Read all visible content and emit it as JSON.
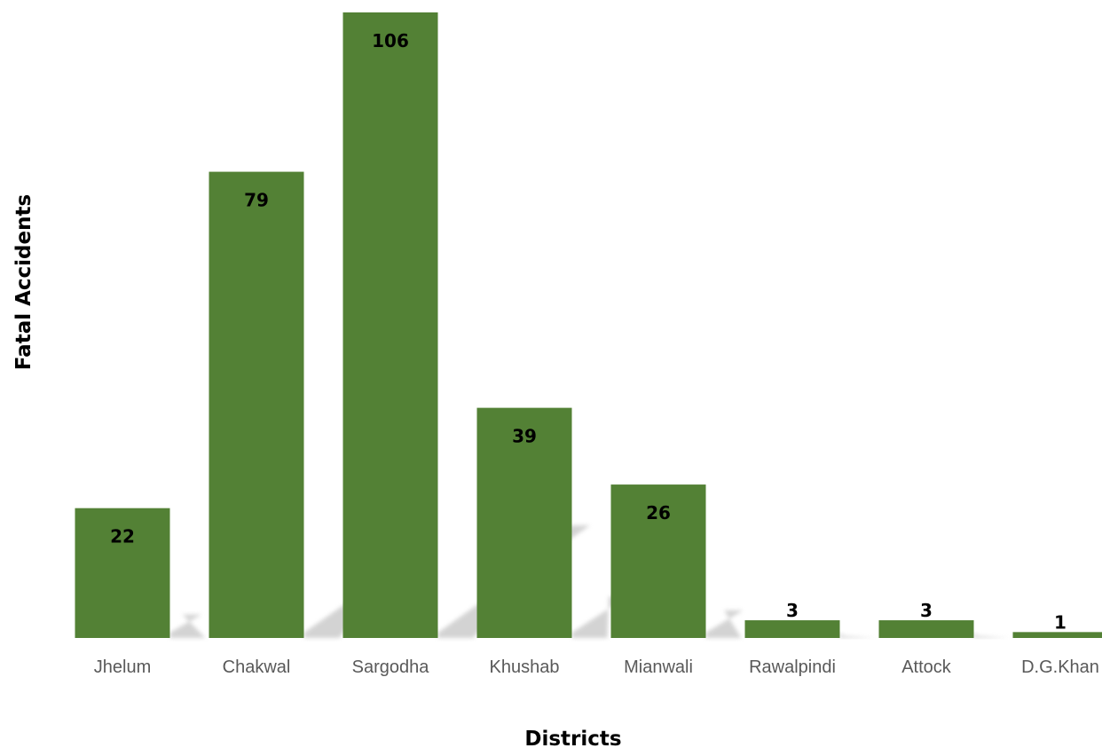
{
  "chart_data": {
    "type": "bar",
    "categories": [
      "Jhelum",
      "Chakwal",
      "Sargodha",
      "Khushab",
      "Mianwali",
      "Rawalpindi",
      "Attock",
      "D.G.Khan"
    ],
    "values": [
      22,
      79,
      106,
      39,
      26,
      3,
      3,
      1
    ],
    "title": "",
    "xlabel": "Districts",
    "ylabel": "Fatal Accidents",
    "ylim": [
      0,
      106
    ],
    "grid": false,
    "legend": "none",
    "data_labels": true,
    "colors": {
      "bar": "#538135",
      "shadow": "#cfcfcf",
      "tick_label": "#595959",
      "data_label": "#000000"
    }
  }
}
